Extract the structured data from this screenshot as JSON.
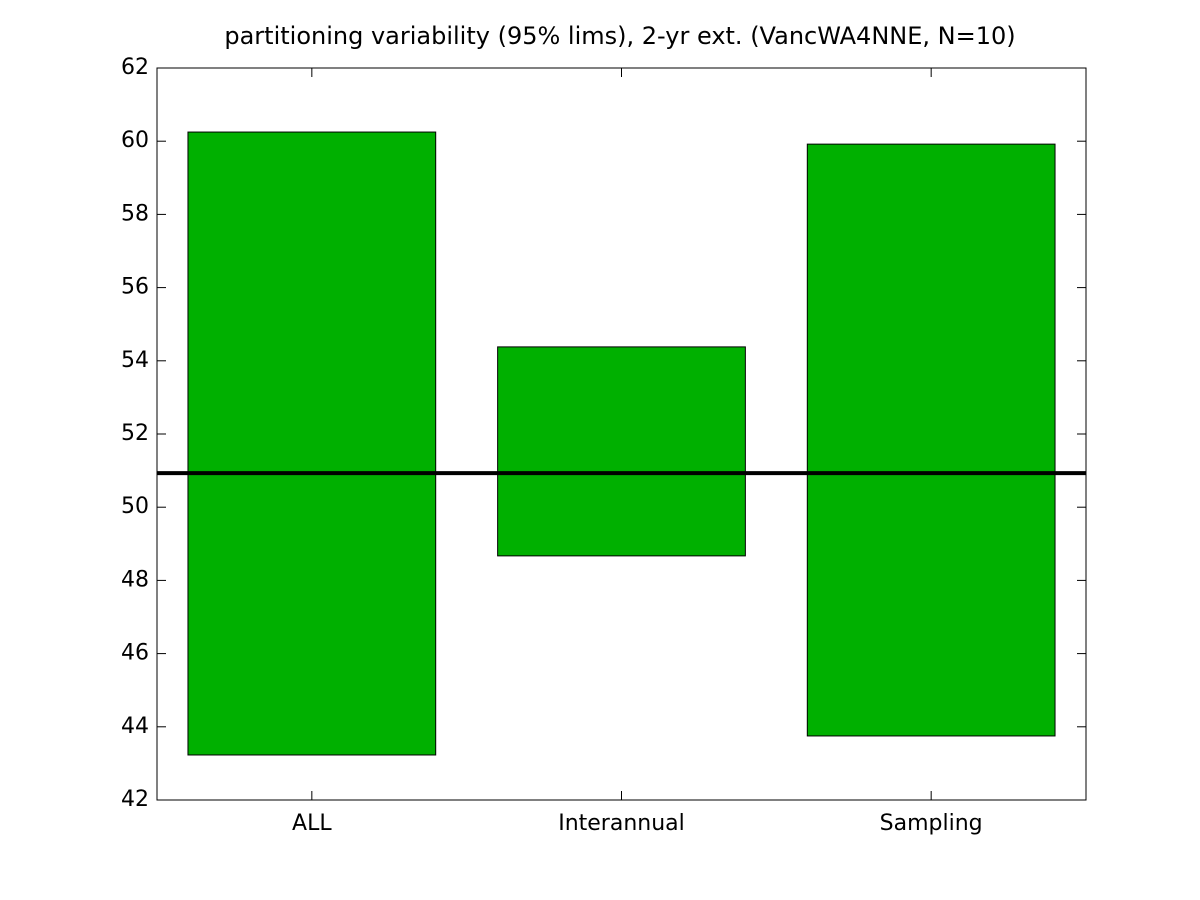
{
  "chart_data": {
    "type": "floating-bar",
    "title": "partitioning variability (95% lims), 2-yr ext. (VancWA4NNE, N=10)",
    "categories": [
      "ALL",
      "Interannual",
      "Sampling"
    ],
    "low": [
      43.23,
      48.67,
      43.75
    ],
    "high": [
      60.25,
      54.38,
      59.92
    ],
    "color": "#00b000",
    "reference_line": 50.93,
    "reference_color": "#000000",
    "ylim": [
      42,
      62
    ],
    "yticks": [
      42,
      44,
      46,
      48,
      50,
      52,
      54,
      56,
      58,
      60,
      62
    ],
    "grid": false
  }
}
